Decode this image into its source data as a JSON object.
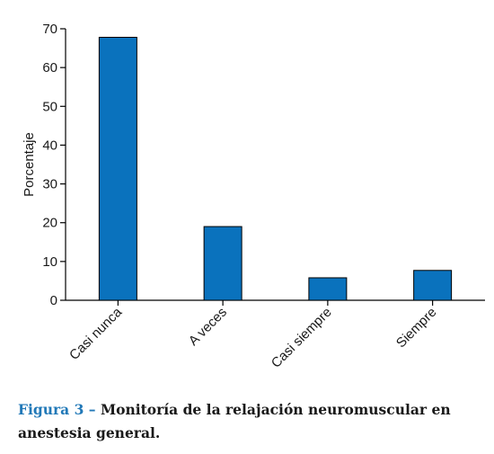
{
  "chart_data": {
    "type": "bar",
    "categories": [
      "Casi nunca",
      "A veces",
      "Casi siempre",
      "Siempre"
    ],
    "values": [
      67.8,
      19.0,
      5.8,
      7.7
    ],
    "xlabel": "",
    "ylabel": "Porcentaje",
    "ylim": [
      0,
      70
    ],
    "yticks": [
      0,
      10,
      20,
      30,
      40,
      50,
      60,
      70
    ],
    "grid": false,
    "bar_color": "#0a72bd"
  },
  "caption": {
    "lead": "Figura 3 –",
    "text": " Monitoría de la relajación neuromuscular en anestesia general."
  }
}
